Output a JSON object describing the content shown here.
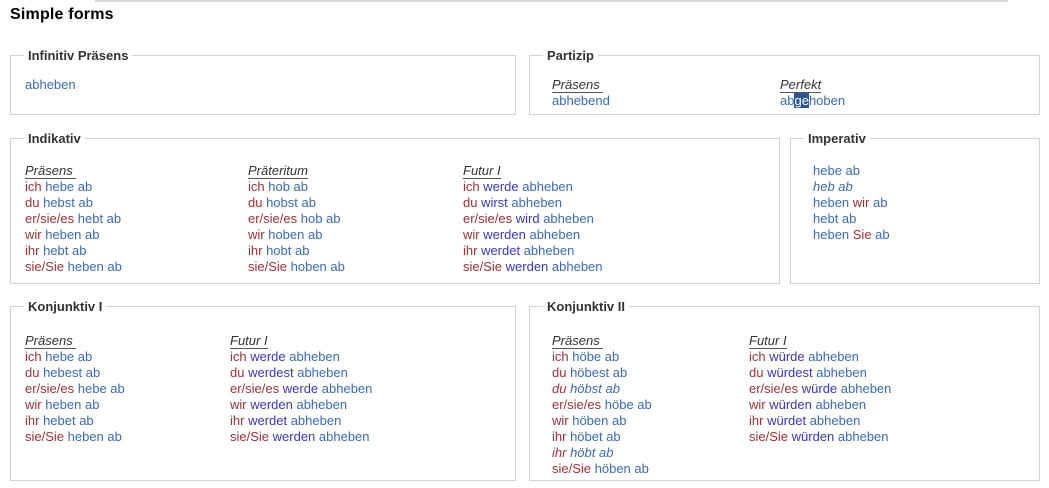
{
  "page": {
    "heading": "Simple forms"
  },
  "colors": {
    "pronoun": "#9a3334",
    "main_verb": "#3b6bb0",
    "auxiliary_verb": "#3838b8",
    "selection_background": "#2b579a",
    "selection_text": "#ffffff",
    "box_border": "#d2d2d2",
    "heading_text": "#333333"
  },
  "boxes": {
    "infinitiv": {
      "legend": "Infinitiv Präsens",
      "columns": [
        {
          "heading": null,
          "rows": [
            [
              {
                "t": "abheben",
                "c": "v"
              }
            ]
          ]
        }
      ]
    },
    "partizip": {
      "legend": "Partizip",
      "columns": [
        {
          "heading": "Präsens ",
          "rows": [
            [
              {
                "t": "abhebend",
                "c": "v"
              }
            ]
          ]
        },
        {
          "heading": "Perfekt",
          "rows": [
            [
              {
                "t": "ab",
                "c": "v"
              },
              {
                "t": "ge",
                "c": "hl"
              },
              {
                "t": "hoben",
                "c": "v"
              }
            ]
          ]
        }
      ]
    },
    "indikativ": {
      "legend": "Indikativ",
      "columns": [
        {
          "heading": "Präsens ",
          "rows": [
            [
              {
                "t": "ich ",
                "c": "p"
              },
              {
                "t": "hebe ab",
                "c": "v"
              }
            ],
            [
              {
                "t": "du ",
                "c": "p"
              },
              {
                "t": "hebst ab",
                "c": "v"
              }
            ],
            [
              {
                "t": "er/sie/es ",
                "c": "p"
              },
              {
                "t": "hebt ab",
                "c": "v"
              }
            ],
            [
              {
                "t": "wir ",
                "c": "p"
              },
              {
                "t": "heben ab",
                "c": "v"
              }
            ],
            [
              {
                "t": "ihr ",
                "c": "p"
              },
              {
                "t": "hebt ab",
                "c": "v"
              }
            ],
            [
              {
                "t": "sie/Sie ",
                "c": "p"
              },
              {
                "t": "heben ab",
                "c": "v"
              }
            ]
          ]
        },
        {
          "heading": "Präteritum",
          "rows": [
            [
              {
                "t": "ich ",
                "c": "p"
              },
              {
                "t": "hob ab",
                "c": "v"
              }
            ],
            [
              {
                "t": "du ",
                "c": "p"
              },
              {
                "t": "hobst ab",
                "c": "v"
              }
            ],
            [
              {
                "t": "er/sie/es ",
                "c": "p"
              },
              {
                "t": "hob ab",
                "c": "v"
              }
            ],
            [
              {
                "t": "wir ",
                "c": "p"
              },
              {
                "t": "hoben ab",
                "c": "v"
              }
            ],
            [
              {
                "t": "ihr ",
                "c": "p"
              },
              {
                "t": "hobt ab",
                "c": "v"
              }
            ],
            [
              {
                "t": "sie/Sie ",
                "c": "p"
              },
              {
                "t": "hoben ab",
                "c": "v"
              }
            ]
          ]
        },
        {
          "heading": "Futur I",
          "rows": [
            [
              {
                "t": "ich ",
                "c": "p"
              },
              {
                "t": "werde",
                "c": "a"
              },
              {
                "t": " abheben",
                "c": "v"
              }
            ],
            [
              {
                "t": "du ",
                "c": "p"
              },
              {
                "t": "wirst",
                "c": "a"
              },
              {
                "t": " abheben",
                "c": "v"
              }
            ],
            [
              {
                "t": "er/sie/es ",
                "c": "p"
              },
              {
                "t": "wird",
                "c": "a"
              },
              {
                "t": " abheben",
                "c": "v"
              }
            ],
            [
              {
                "t": "wir ",
                "c": "p"
              },
              {
                "t": "werden",
                "c": "a"
              },
              {
                "t": " abheben",
                "c": "v"
              }
            ],
            [
              {
                "t": "ihr ",
                "c": "p"
              },
              {
                "t": "werdet",
                "c": "a"
              },
              {
                "t": " abheben",
                "c": "v"
              }
            ],
            [
              {
                "t": "sie/Sie ",
                "c": "p"
              },
              {
                "t": "werden",
                "c": "a"
              },
              {
                "t": " abheben",
                "c": "v"
              }
            ]
          ]
        }
      ]
    },
    "imperativ": {
      "legend": "Imperativ",
      "columns": [
        {
          "heading": null,
          "rows": [
            [
              {
                "t": "hebe ab",
                "c": "v"
              }
            ],
            [
              {
                "t": "heb ab",
                "c": "v",
                "i": true
              }
            ],
            [
              {
                "t": "heben ",
                "c": "v"
              },
              {
                "t": "wir",
                "c": "p"
              },
              {
                "t": " ab",
                "c": "v"
              }
            ],
            [
              {
                "t": "hebt ab",
                "c": "v"
              }
            ],
            [
              {
                "t": "heben ",
                "c": "v"
              },
              {
                "t": "Sie",
                "c": "p"
              },
              {
                "t": " ab",
                "c": "v"
              }
            ]
          ]
        }
      ]
    },
    "konjunktiv1": {
      "legend": "Konjunktiv I",
      "columns": [
        {
          "heading": "Präsens ",
          "rows": [
            [
              {
                "t": "ich ",
                "c": "p"
              },
              {
                "t": "hebe ab",
                "c": "v"
              }
            ],
            [
              {
                "t": "du ",
                "c": "p"
              },
              {
                "t": "hebest ab",
                "c": "v"
              }
            ],
            [
              {
                "t": "er/sie/es ",
                "c": "p"
              },
              {
                "t": "hebe ab",
                "c": "v"
              }
            ],
            [
              {
                "t": "wir ",
                "c": "p"
              },
              {
                "t": "heben ab",
                "c": "v"
              }
            ],
            [
              {
                "t": "ihr ",
                "c": "p"
              },
              {
                "t": "hebet ab",
                "c": "v"
              }
            ],
            [
              {
                "t": "sie/Sie ",
                "c": "p"
              },
              {
                "t": "heben ab",
                "c": "v"
              }
            ]
          ]
        },
        {
          "heading": "Futur I",
          "rows": [
            [
              {
                "t": "ich ",
                "c": "p"
              },
              {
                "t": "werde",
                "c": "a"
              },
              {
                "t": " abheben",
                "c": "v"
              }
            ],
            [
              {
                "t": "du ",
                "c": "p"
              },
              {
                "t": "werdest",
                "c": "a"
              },
              {
                "t": " abheben",
                "c": "v"
              }
            ],
            [
              {
                "t": "er/sie/es ",
                "c": "p"
              },
              {
                "t": "werde",
                "c": "a"
              },
              {
                "t": " abheben",
                "c": "v"
              }
            ],
            [
              {
                "t": "wir ",
                "c": "p"
              },
              {
                "t": "werden",
                "c": "a"
              },
              {
                "t": " abheben",
                "c": "v"
              }
            ],
            [
              {
                "t": "ihr ",
                "c": "p"
              },
              {
                "t": "werdet",
                "c": "a"
              },
              {
                "t": " abheben",
                "c": "v"
              }
            ],
            [
              {
                "t": "sie/Sie ",
                "c": "p"
              },
              {
                "t": "werden",
                "c": "a"
              },
              {
                "t": " abheben",
                "c": "v"
              }
            ]
          ]
        }
      ]
    },
    "konjunktiv2": {
      "legend": "Konjunktiv II",
      "columns": [
        {
          "heading": "Präsens ",
          "rows": [
            [
              {
                "t": "ich ",
                "c": "p"
              },
              {
                "t": "höbe ab",
                "c": "v"
              }
            ],
            [
              {
                "t": "du ",
                "c": "p"
              },
              {
                "t": "höbest ab",
                "c": "v"
              }
            ],
            [
              {
                "t": "du ",
                "c": "p",
                "i": true
              },
              {
                "t": "höbst ab",
                "c": "v",
                "i": true
              }
            ],
            [
              {
                "t": "er/sie/es ",
                "c": "p"
              },
              {
                "t": "höbe ab",
                "c": "v"
              }
            ],
            [
              {
                "t": "wir ",
                "c": "p"
              },
              {
                "t": "höben ab",
                "c": "v"
              }
            ],
            [
              {
                "t": "ihr ",
                "c": "p"
              },
              {
                "t": "höbet ab",
                "c": "v"
              }
            ],
            [
              {
                "t": "ihr ",
                "c": "p",
                "i": true
              },
              {
                "t": "höbt ab",
                "c": "v",
                "i": true
              }
            ],
            [
              {
                "t": "sie/Sie ",
                "c": "p"
              },
              {
                "t": "höben ab",
                "c": "v"
              }
            ]
          ]
        },
        {
          "heading": "Futur I",
          "rows": [
            [
              {
                "t": "ich ",
                "c": "p"
              },
              {
                "t": "würde",
                "c": "a"
              },
              {
                "t": " abheben",
                "c": "v"
              }
            ],
            [
              {
                "t": "du ",
                "c": "p"
              },
              {
                "t": "würdest",
                "c": "a"
              },
              {
                "t": " abheben",
                "c": "v"
              }
            ],
            [
              {
                "t": "er/sie/es ",
                "c": "p"
              },
              {
                "t": "würde",
                "c": "a"
              },
              {
                "t": " abheben",
                "c": "v"
              }
            ],
            [
              {
                "t": "wir ",
                "c": "p"
              },
              {
                "t": "würden",
                "c": "a"
              },
              {
                "t": " abheben",
                "c": "v"
              }
            ],
            [
              {
                "t": "ihr ",
                "c": "p"
              },
              {
                "t": "würdet",
                "c": "a"
              },
              {
                "t": " abheben",
                "c": "v"
              }
            ],
            [
              {
                "t": "sie/Sie ",
                "c": "p"
              },
              {
                "t": "würden",
                "c": "a"
              },
              {
                "t": " abheben",
                "c": "v"
              }
            ]
          ]
        }
      ]
    }
  }
}
